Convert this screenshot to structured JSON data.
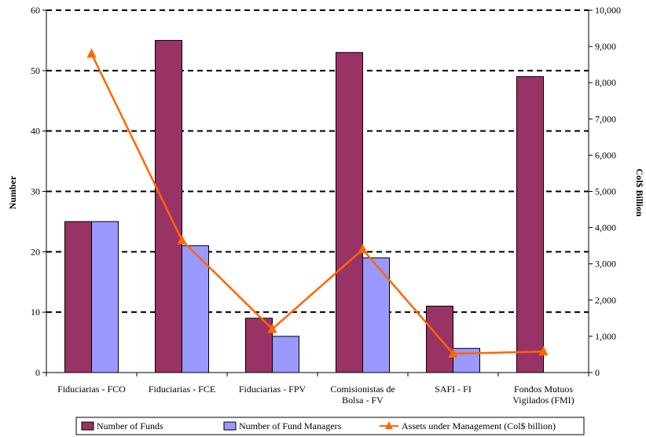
{
  "chart_data": {
    "type": "bar",
    "categories": [
      [
        "Fiduciarias - FCO"
      ],
      [
        "Fiduciarias - FCE"
      ],
      [
        "Fiduciarias - FPV"
      ],
      [
        "Comisionistas de",
        "Bolsa - FV"
      ],
      [
        "SAFI - FI"
      ],
      [
        "Fondos Mutuos",
        "Vigilados (FMI)"
      ]
    ],
    "series": [
      {
        "name": "Number of Funds",
        "kind": "bar",
        "axis": "left",
        "color": "#993366",
        "values": [
          25,
          55,
          9,
          53,
          11,
          49
        ]
      },
      {
        "name": "Number of Fund Managers",
        "kind": "bar",
        "axis": "left",
        "color": "#9999ff",
        "values": [
          25,
          21,
          6,
          19,
          4,
          null
        ]
      },
      {
        "name": "Assets under Management (Col$ billion)",
        "kind": "line",
        "axis": "right",
        "color": "#ff6600",
        "marker": "triangle",
        "values": [
          8800,
          3650,
          1200,
          3400,
          520,
          580
        ]
      }
    ],
    "ylabel": "Number",
    "y2label": "Col$ Billion",
    "ylim": [
      0,
      60
    ],
    "y2lim": [
      0,
      10000
    ],
    "yticks": [
      "0",
      "10",
      "20",
      "30",
      "40",
      "50",
      "60"
    ],
    "y2ticks": [
      "0",
      "1,000",
      "2,000",
      "3,000",
      "4,000",
      "5,000",
      "6,000",
      "7,000",
      "8,000",
      "9,000",
      "10,000"
    ],
    "grid": "dashed horizontal",
    "legend": "bottom"
  }
}
